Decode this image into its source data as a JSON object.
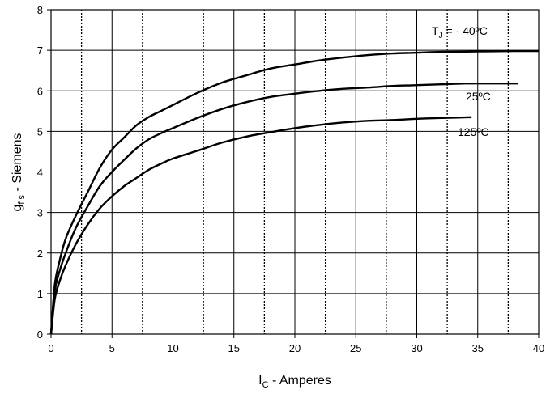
{
  "chart_data": {
    "type": "line",
    "xlabel": "I_C - Amperes",
    "xlabel_main": "I",
    "xlabel_sub": "C",
    "xlabel_rest": " - Amperes",
    "ylabel_main": "g",
    "ylabel_sub": "f s",
    "ylabel_rest": " - Siemens",
    "xlim": [
      0,
      40
    ],
    "ylim": [
      0,
      8
    ],
    "x_ticks": [
      0,
      5,
      10,
      15,
      20,
      25,
      30,
      35,
      40
    ],
    "y_ticks": [
      0,
      1,
      2,
      3,
      4,
      5,
      6,
      7,
      8
    ],
    "minor_x_gridlines_dotted": [
      2.5,
      7.5,
      12.5,
      17.5,
      22.5,
      27.5,
      32.5,
      37.5
    ],
    "grid": true,
    "series_label_prefix": "T",
    "series_label_prefix_sub": "J",
    "series": [
      {
        "name": "- 40ºC",
        "label_full": "T_J = - 40ºC",
        "x": [
          0,
          0.3,
          0.7,
          1.2,
          2,
          3,
          4,
          5,
          6,
          7,
          8,
          9,
          10,
          12,
          14,
          16,
          18,
          20,
          22,
          24,
          26,
          28,
          30,
          32,
          35,
          38,
          40
        ],
        "y": [
          0,
          1.2,
          1.8,
          2.35,
          2.9,
          3.5,
          4.1,
          4.55,
          4.85,
          5.15,
          5.35,
          5.5,
          5.65,
          5.95,
          6.2,
          6.38,
          6.55,
          6.65,
          6.75,
          6.82,
          6.88,
          6.92,
          6.94,
          6.96,
          6.97,
          6.98,
          6.98
        ]
      },
      {
        "name": "25ºC",
        "label_full": "25ºC",
        "x": [
          0,
          0.3,
          0.7,
          1.2,
          2,
          3,
          4,
          5,
          6,
          7,
          8,
          9,
          10,
          12,
          14,
          16,
          18,
          20,
          22,
          24,
          26,
          28,
          30,
          32,
          34,
          36,
          38.3
        ],
        "y": [
          0,
          1.05,
          1.55,
          2.0,
          2.6,
          3.15,
          3.65,
          4.0,
          4.3,
          4.58,
          4.8,
          4.95,
          5.08,
          5.33,
          5.55,
          5.72,
          5.85,
          5.93,
          6.0,
          6.05,
          6.08,
          6.12,
          6.14,
          6.16,
          6.18,
          6.18,
          6.18
        ]
      },
      {
        "name": "125ºC",
        "label_full": "125ºC",
        "x": [
          0,
          0.3,
          0.7,
          1.2,
          2,
          3,
          4,
          5,
          6,
          7,
          8,
          9,
          10,
          12,
          14,
          16,
          18,
          20,
          22,
          24,
          26,
          28,
          30,
          32,
          34.5
        ],
        "y": [
          0,
          0.85,
          1.3,
          1.7,
          2.2,
          2.7,
          3.1,
          3.4,
          3.65,
          3.85,
          4.05,
          4.2,
          4.33,
          4.52,
          4.72,
          4.87,
          4.98,
          5.08,
          5.16,
          5.22,
          5.26,
          5.28,
          5.31,
          5.33,
          5.35
        ]
      }
    ]
  }
}
